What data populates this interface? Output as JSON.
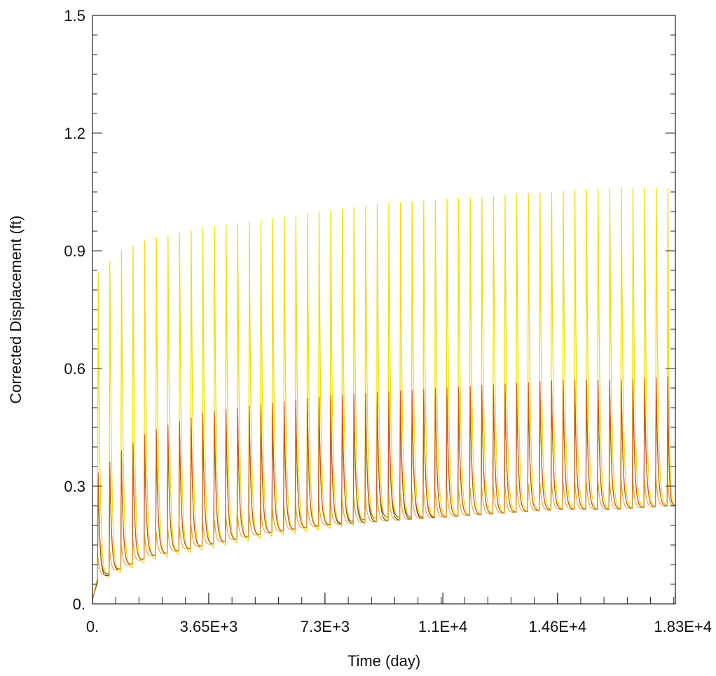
{
  "chart_data": {
    "type": "line",
    "title": "",
    "xlabel": "Time (day)",
    "ylabel": "Corrected Displacement (ft)",
    "xlim": [
      0,
      18300
    ],
    "ylim": [
      0,
      1.5
    ],
    "x_ticks": [
      {
        "value": 0,
        "label": "0."
      },
      {
        "value": 3650,
        "label": "3.65E+3"
      },
      {
        "value": 7300,
        "label": "7.3E+3"
      },
      {
        "value": 11000,
        "label": "1.1E+4"
      },
      {
        "value": 14600,
        "label": "1.46E+4"
      },
      {
        "value": 18300,
        "label": "1.83E+4"
      }
    ],
    "y_ticks": [
      {
        "value": 0,
        "label": "0."
      },
      {
        "value": 0.3,
        "label": "0.3"
      },
      {
        "value": 0.6,
        "label": "0.6"
      },
      {
        "value": 0.9,
        "label": "0.9"
      },
      {
        "value": 1.2,
        "label": "1.2"
      },
      {
        "value": 1.5,
        "label": "1.5"
      }
    ],
    "grid": false,
    "legend": "none",
    "cycle_period_days": 365,
    "cycle_peaks_at": [
      180,
      545,
      910,
      1275,
      1640,
      2005,
      2370,
      2735,
      3100,
      3465,
      3830,
      4195,
      4560,
      4925,
      5290,
      5655,
      6020,
      6385,
      6750,
      7115,
      7480,
      7845,
      8210,
      8575,
      8940,
      9305,
      9670,
      10035,
      10400,
      10765,
      11130,
      11495,
      11860,
      12225,
      12590,
      12955,
      13320,
      13685,
      14050,
      14415,
      14780,
      15145,
      15510,
      15875,
      16240,
      16605,
      16970,
      17335,
      17700,
      18065
    ],
    "series": [
      {
        "color": "#f2df00",
        "envelope": {
          "t": [
            0,
            900,
            1800,
            3650,
            5500,
            7300,
            9100,
            11000,
            12800,
            14600,
            16400,
            18300
          ],
          "peak": [
            0.83,
            0.9,
            0.93,
            0.96,
            0.98,
            1.0,
            1.02,
            1.03,
            1.04,
            1.05,
            1.06,
            1.06
          ],
          "trough": [
            0.05,
            0.08,
            0.11,
            0.14,
            0.17,
            0.19,
            0.21,
            0.22,
            0.23,
            0.24,
            0.24,
            0.25
          ]
        }
      },
      {
        "color": "#2e5a1e",
        "envelope": {
          "t": [
            0,
            900,
            1800,
            3650,
            5500,
            7300,
            9100,
            11000,
            12800,
            14600,
            16400,
            18300
          ],
          "peak": [
            0.3,
            0.38,
            0.42,
            0.47,
            0.49,
            0.51,
            0.52,
            0.53,
            0.54,
            0.55,
            0.55,
            0.56
          ],
          "trough": [
            0.05,
            0.09,
            0.12,
            0.15,
            0.18,
            0.2,
            0.21,
            0.22,
            0.23,
            0.24,
            0.24,
            0.25
          ]
        }
      },
      {
        "color": "#d9541e",
        "envelope": {
          "t": [
            0,
            900,
            1800,
            3650,
            5500,
            7300,
            9100,
            11000,
            12800,
            14600,
            16400,
            18300
          ],
          "peak": [
            0.32,
            0.39,
            0.44,
            0.49,
            0.51,
            0.53,
            0.54,
            0.55,
            0.56,
            0.57,
            0.57,
            0.58
          ],
          "trough": [
            0.06,
            0.09,
            0.12,
            0.15,
            0.18,
            0.2,
            0.22,
            0.22,
            0.23,
            0.24,
            0.24,
            0.25
          ]
        }
      },
      {
        "color": "#e8a020",
        "envelope": {
          "t": [
            0,
            900,
            1800,
            3650,
            5500,
            7300,
            9100,
            11000,
            12800,
            14600,
            16400,
            18300
          ],
          "peak": [
            0.11,
            0.15,
            0.18,
            0.21,
            0.24,
            0.26,
            0.28,
            0.29,
            0.3,
            0.31,
            0.31,
            0.32
          ],
          "trough": [
            0.06,
            0.09,
            0.12,
            0.15,
            0.18,
            0.2,
            0.21,
            0.22,
            0.23,
            0.24,
            0.24,
            0.25
          ]
        }
      }
    ]
  }
}
